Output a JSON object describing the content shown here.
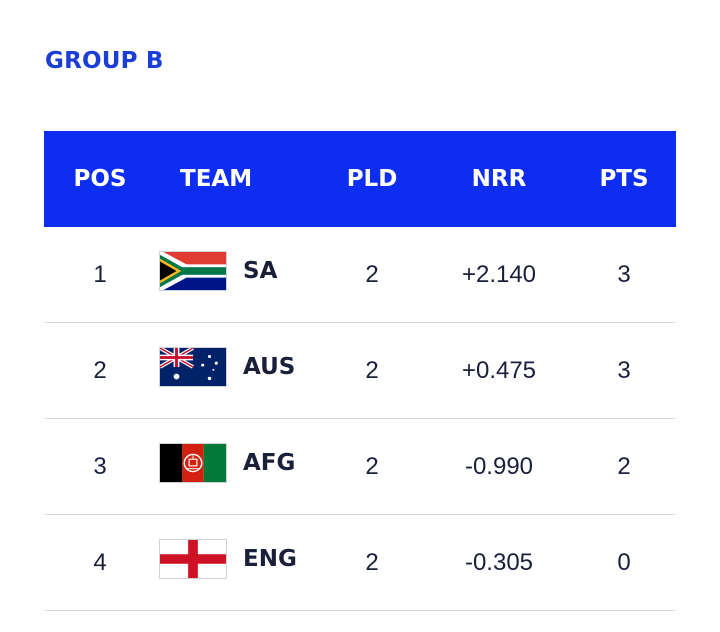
{
  "group": {
    "title": "GROUP B"
  },
  "table": {
    "headers": {
      "pos": "POS",
      "team": "TEAM",
      "pld": "PLD",
      "nrr": "NRR",
      "pts": "PTS"
    },
    "rows": [
      {
        "pos": "1",
        "team": "SA",
        "flag": "south-africa-flag-icon",
        "pld": "2",
        "nrr": "+2.140",
        "pts": "3"
      },
      {
        "pos": "2",
        "team": "AUS",
        "flag": "australia-flag-icon",
        "pld": "2",
        "nrr": "+0.475",
        "pts": "3"
      },
      {
        "pos": "3",
        "team": "AFG",
        "flag": "afghanistan-flag-icon",
        "pld": "2",
        "nrr": "-0.990",
        "pts": "2"
      },
      {
        "pos": "4",
        "team": "ENG",
        "flag": "england-flag-icon",
        "pld": "2",
        "nrr": "-0.305",
        "pts": "0"
      }
    ]
  },
  "colors": {
    "title": "#1a3ed6",
    "header_bg": "#0d2ef0",
    "header_text": "#ffffff",
    "body_text": "#1a1f3a",
    "divider": "#d8d9de"
  }
}
